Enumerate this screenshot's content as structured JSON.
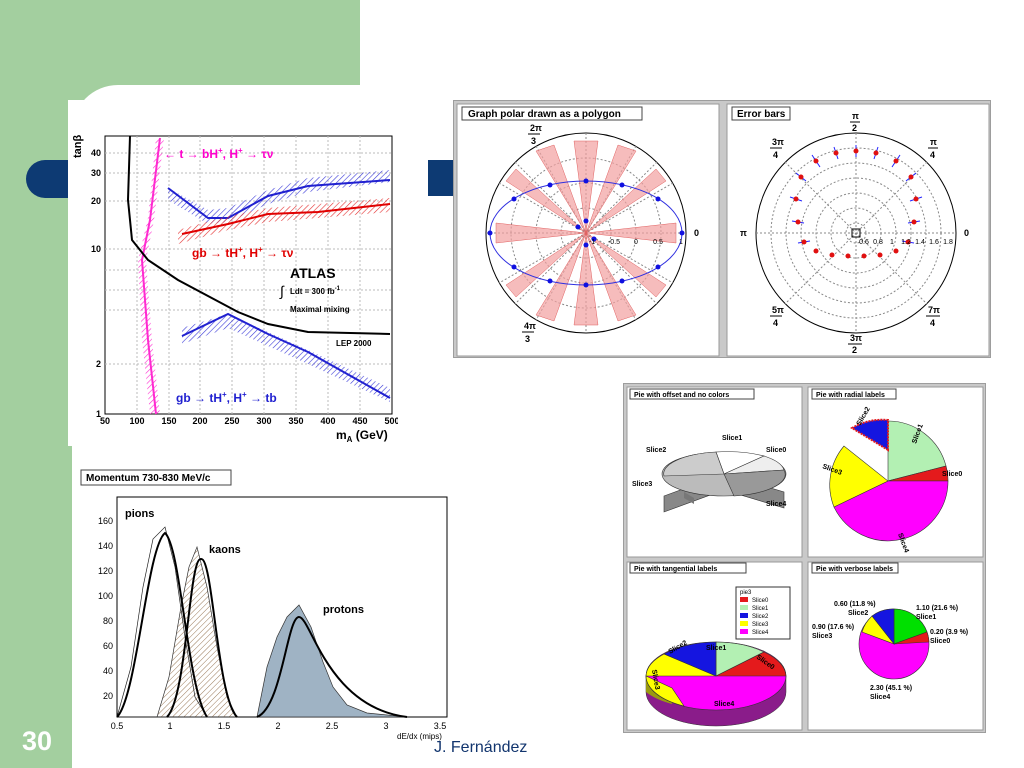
{
  "slide": {
    "page_number": "30",
    "author": "J. Fernández"
  },
  "colors": {
    "sidebar": "#a3cf9f",
    "accent_bar": "#0d3a73"
  },
  "atlas_plot": {
    "ylabel": "tanβ",
    "xlabel": "m",
    "xlabel_sub": "A",
    "xlabel_unit": " (GeV)",
    "yticks": [
      "40",
      "30",
      "20",
      "10",
      "2",
      "1"
    ],
    "xticks": [
      "50",
      "100",
      "150",
      "200",
      "250",
      "300",
      "350",
      "400",
      "450",
      "500"
    ],
    "label_top": "← t → bH+, H+ → τν",
    "label_mid": "gb → tH+, H+ → τν",
    "label_bot": "gb → tH+, H+ → tb",
    "atlas": "ATLAS",
    "lumi": "Ldt = 300 fb",
    "lumi_sup": "-1",
    "mixing": "Maximal mixing",
    "lep": "LEP 2000"
  },
  "momentum_plot": {
    "title": "Momentum 730-830 MeV/c",
    "yticks": [
      "160",
      "140",
      "120",
      "100",
      "80",
      "60",
      "40",
      "20"
    ],
    "xticks": [
      "0.5",
      "1",
      "1.5",
      "2",
      "2.5",
      "3",
      "3.5"
    ],
    "xlabel": "dE/dx (mips)",
    "pions": "pions",
    "kaons": "kaons",
    "protons": "protons"
  },
  "polar_panel": {
    "title": "Graph polar drawn as a polygon",
    "labels": [
      "2π",
      "3",
      "4π",
      "3",
      "0",
      "-1",
      "-0.5",
      "0",
      "0.5",
      "1"
    ]
  },
  "error_panel": {
    "title": "Error bars",
    "labels": [
      "π",
      "2",
      "3π",
      "4",
      "π",
      "4",
      "π",
      "0",
      "5π",
      "4",
      "7π",
      "4",
      "3π",
      "2"
    ],
    "radial": [
      "0.6",
      "0.8",
      "1",
      "1.2",
      "1.4",
      "1.6",
      "1.8"
    ]
  },
  "pie_panels": {
    "offset": {
      "title": "Pie with offset and no colors",
      "labels": [
        "Slice1",
        "Slice0",
        "Slice2",
        "Slice3",
        "Slice4"
      ]
    },
    "radial": {
      "title": "Pie with radial labels",
      "labels": [
        "Slice2",
        "Slice1",
        "Slice0",
        "Slice3",
        "Slice4"
      ]
    },
    "tangential": {
      "title": "Pie with tangential labels",
      "legend_title": "pie3",
      "legend": [
        "Slice0",
        "Slice1",
        "Slice2",
        "Slice3",
        "Slice4"
      ],
      "labels": [
        "Slice1",
        "Slice0",
        "Slice3",
        "Slice4",
        "Slice2"
      ]
    },
    "verbose": {
      "title": "Pie with verbose labels",
      "labels": [
        "0.60 (11.8 %)",
        "Slice2",
        "1.10 (21.6 %)",
        "Slice1",
        "0.90 (17.6 %)",
        "Slice3",
        "0.20 (3.9 %)",
        "Slice0",
        "2.30 (45.1 %)",
        "Slice4"
      ]
    }
  },
  "pie_colors": [
    "#e41a1c",
    "#b3f0b3",
    "#1515e0",
    "#ffff00",
    "#ff00ff"
  ]
}
